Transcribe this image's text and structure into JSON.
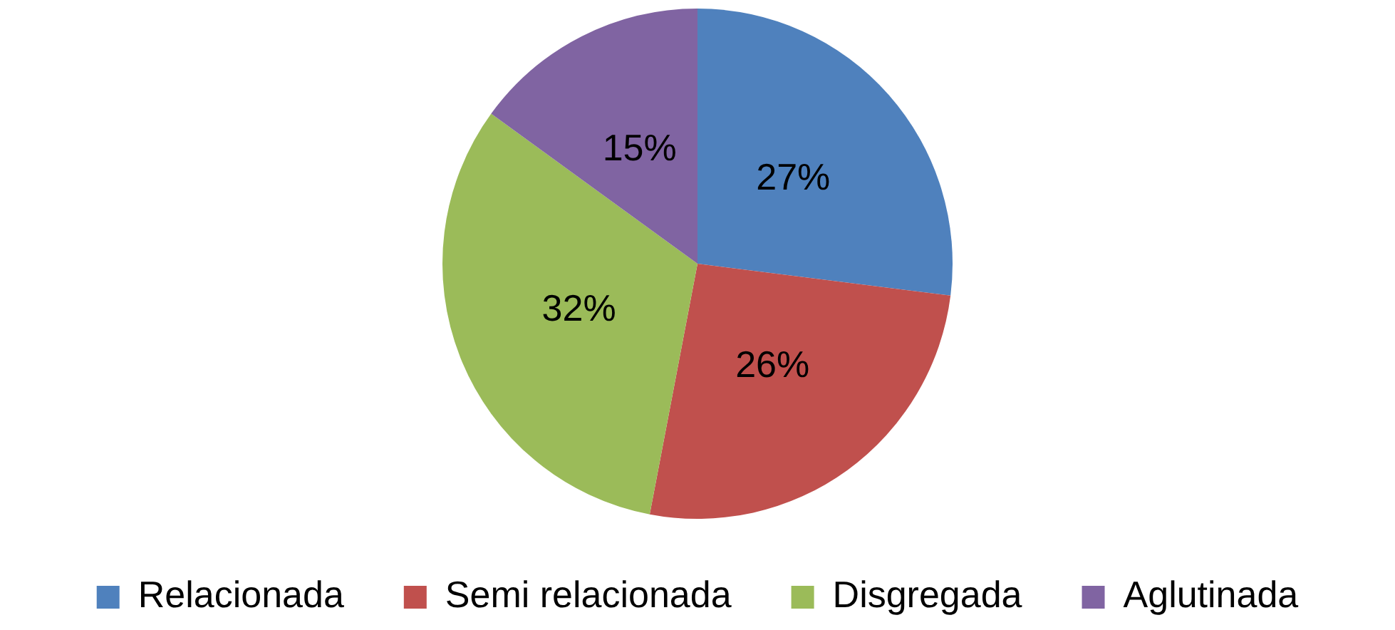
{
  "chart_data": {
    "type": "pie",
    "categories": [
      "Relacionada",
      "Semi relacionada",
      "Disgregada",
      "Aglutinada"
    ],
    "values": [
      27,
      26,
      32,
      15
    ],
    "colors": [
      "#4f81bd",
      "#c0504d",
      "#9bbb59",
      "#8064a2"
    ],
    "value_labels": [
      "27%",
      "26%",
      "32%",
      "15%"
    ],
    "legend": "bottom"
  }
}
